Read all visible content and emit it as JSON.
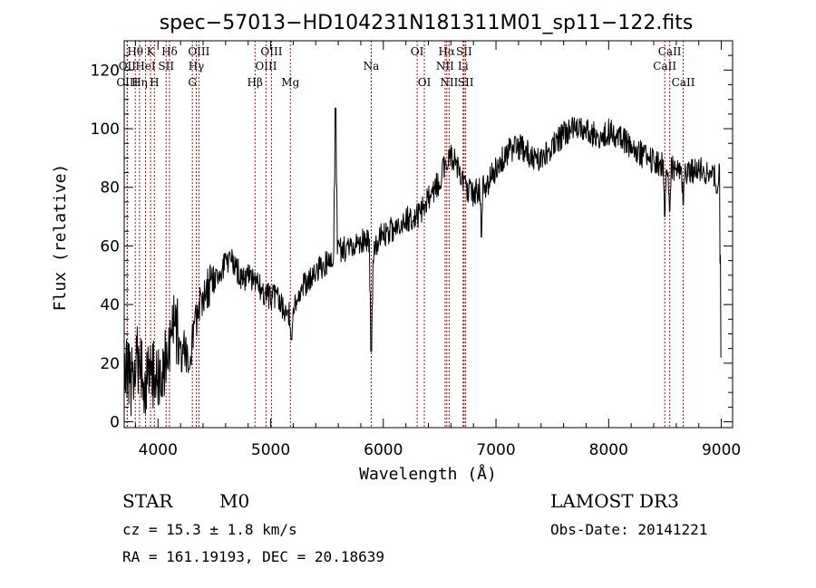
{
  "chart_data": {
    "type": "line",
    "title": "spec−57013−HD104231N181311M01_sp11−122.fits",
    "xlabel": "Wavelength (Å)",
    "ylabel": "Flux (relative)",
    "xlim": [
      3700,
      9100
    ],
    "ylim": [
      -2,
      130
    ],
    "xticks": [
      4000,
      5000,
      6000,
      7000,
      8000,
      9000
    ],
    "xtick_labels": [
      "4000",
      "5000",
      "6000",
      "7000",
      "8000",
      "9000"
    ],
    "yticks": [
      0,
      20,
      40,
      60,
      80,
      100,
      120
    ],
    "ytick_labels": [
      "0",
      "20",
      "40",
      "60",
      "80",
      "100",
      "120"
    ],
    "spectrum_knots": [
      [
        3700,
        22
      ],
      [
        3760,
        14
      ],
      [
        3820,
        22
      ],
      [
        3880,
        13
      ],
      [
        3940,
        17
      ],
      [
        4000,
        14
      ],
      [
        4060,
        20
      ],
      [
        4100,
        28
      ],
      [
        4150,
        32
      ],
      [
        4200,
        30
      ],
      [
        4260,
        22
      ],
      [
        4300,
        25
      ],
      [
        4340,
        35
      ],
      [
        4400,
        44
      ],
      [
        4450,
        46
      ],
      [
        4500,
        48
      ],
      [
        4560,
        51
      ],
      [
        4600,
        54
      ],
      [
        4650,
        55
      ],
      [
        4700,
        52
      ],
      [
        4760,
        48
      ],
      [
        4800,
        51
      ],
      [
        4860,
        48
      ],
      [
        4920,
        45
      ],
      [
        4980,
        43
      ],
      [
        5050,
        42
      ],
      [
        5100,
        40
      ],
      [
        5170,
        36
      ],
      [
        5250,
        42
      ],
      [
        5300,
        47
      ],
      [
        5400,
        51
      ],
      [
        5500,
        54
      ],
      [
        5600,
        58
      ],
      [
        5700,
        60
      ],
      [
        5800,
        61
      ],
      [
        5860,
        63
      ],
      [
        5900,
        55
      ],
      [
        5960,
        63
      ],
      [
        6000,
        64
      ],
      [
        6100,
        66
      ],
      [
        6200,
        69
      ],
      [
        6300,
        70
      ],
      [
        6400,
        76
      ],
      [
        6500,
        82
      ],
      [
        6560,
        90
      ],
      [
        6620,
        90
      ],
      [
        6680,
        84
      ],
      [
        6720,
        80
      ],
      [
        6800,
        78
      ],
      [
        6900,
        80
      ],
      [
        7000,
        86
      ],
      [
        7100,
        92
      ],
      [
        7200,
        94
      ],
      [
        7300,
        91
      ],
      [
        7400,
        89
      ],
      [
        7500,
        94
      ],
      [
        7600,
        98
      ],
      [
        7700,
        101
      ],
      [
        7800,
        100
      ],
      [
        7900,
        97
      ],
      [
        8000,
        99
      ],
      [
        8100,
        97
      ],
      [
        8200,
        94
      ],
      [
        8300,
        91
      ],
      [
        8400,
        89
      ],
      [
        8500,
        87
      ],
      [
        8600,
        86
      ],
      [
        8700,
        85
      ],
      [
        8800,
        86
      ],
      [
        8900,
        85
      ],
      [
        9000,
        84
      ]
    ],
    "spectrum_features": [
      {
        "wavelength": 5577,
        "value": 107
      },
      {
        "wavelength": 5892,
        "value": 24
      },
      {
        "wavelength": 4210,
        "value": 17
      },
      {
        "wavelength": 4275,
        "value": 18
      },
      {
        "wavelength": 5185,
        "value": 28
      },
      {
        "wavelength": 6563,
        "value": 86
      },
      {
        "wavelength": 6870,
        "value": 63
      },
      {
        "wavelength": 8498,
        "value": 70
      },
      {
        "wavelength": 8542,
        "value": 72
      },
      {
        "wavelength": 8662,
        "value": 74
      },
      {
        "wavelength": 8960,
        "value": 78
      },
      {
        "wavelength": 9000,
        "value": 22
      }
    ],
    "line_markers": [
      {
        "label": "Hθ",
        "wavelength": 3798,
        "row": 0
      },
      {
        "label": "OII",
        "wavelength": 3727,
        "row": 1
      },
      {
        "label": "OIII",
        "wavelength": 3727,
        "row": 2
      },
      {
        "label": "Hη",
        "wavelength": 3836,
        "row": 2
      },
      {
        "label": "HeI",
        "wavelength": 3889,
        "row": 1
      },
      {
        "label": "K",
        "wavelength": 3934,
        "row": 0
      },
      {
        "label": "H",
        "wavelength": 3968,
        "row": 2
      },
      {
        "label": "SII",
        "wavelength": 4072,
        "row": 1
      },
      {
        "label": "Hδ",
        "wavelength": 4102,
        "row": 0
      },
      {
        "label": "OIII",
        "wavelength": 4363,
        "row": 0
      },
      {
        "label": "Hγ",
        "wavelength": 4340,
        "row": 1
      },
      {
        "label": "G",
        "wavelength": 4305,
        "row": 2
      },
      {
        "label": "OIII",
        "wavelength": 5007,
        "row": 0
      },
      {
        "label": "OIII",
        "wavelength": 4959,
        "row": 1
      },
      {
        "label": "Hβ",
        "wavelength": 4861,
        "row": 2
      },
      {
        "label": "Mg",
        "wavelength": 5175,
        "row": 2
      },
      {
        "label": "Na",
        "wavelength": 5893,
        "row": 1
      },
      {
        "label": "OI",
        "wavelength": 6300,
        "row": 0
      },
      {
        "label": "OI",
        "wavelength": 6364,
        "row": 2
      },
      {
        "label": "Hα",
        "wavelength": 6563,
        "row": 0
      },
      {
        "label": "NII",
        "wavelength": 6548,
        "row": 1
      },
      {
        "label": "NII",
        "wavelength": 6584,
        "row": 2
      },
      {
        "label": "SII",
        "wavelength": 6717,
        "row": 0
      },
      {
        "label": "Li",
        "wavelength": 6708,
        "row": 1
      },
      {
        "label": "SII",
        "wavelength": 6731,
        "row": 2
      },
      {
        "label": "CaII",
        "wavelength": 8542,
        "row": 0
      },
      {
        "label": "CaII",
        "wavelength": 8498,
        "row": 1
      },
      {
        "label": "CaII",
        "wavelength": 8662,
        "row": 2
      }
    ]
  },
  "info": {
    "class_label": "STAR",
    "subclass_label": "M0",
    "survey_label": "LAMOST DR3",
    "cz_text": "cz = 15.3 ± 1.8 km/s",
    "obs_date_text": "Obs-Date: 20141221",
    "coords_text": "RA = 161.19193, DEC =  20.18639"
  },
  "colors": {
    "line_marker": "#cc0000",
    "spectrum": "#000000",
    "axes": "#000000"
  }
}
